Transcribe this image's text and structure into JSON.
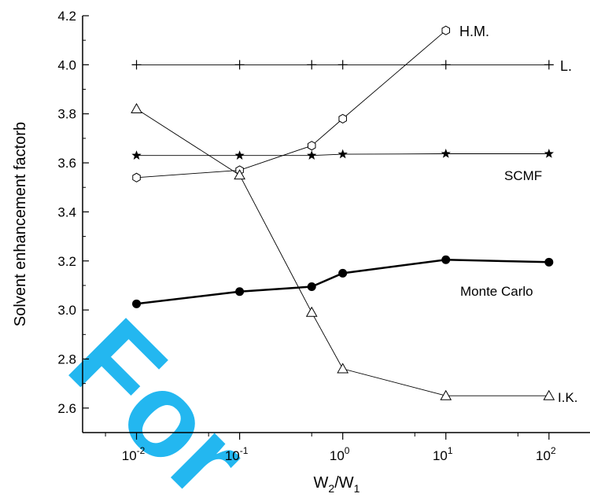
{
  "chart_data": {
    "type": "line",
    "xscale": "log",
    "xlim": [
      0.003,
      250
    ],
    "ylim": [
      2.5,
      4.2
    ],
    "xlabel": {
      "base": "W",
      "sub1": "2",
      "sep": "/W",
      "sub2": "1"
    },
    "ylabel": "Solvent enhancement factorb",
    "x_ticks": [
      {
        "value": 0.01,
        "base": "10",
        "exp": "-2"
      },
      {
        "value": 0.1,
        "base": "10",
        "exp": "-1"
      },
      {
        "value": 1,
        "base": "10",
        "exp": "0"
      },
      {
        "value": 10,
        "base": "10",
        "exp": "1"
      },
      {
        "value": 100,
        "base": "10",
        "exp": "2"
      }
    ],
    "y_ticks": [
      {
        "value": 2.6,
        "label": "2.6"
      },
      {
        "value": 2.8,
        "label": "2.8"
      },
      {
        "value": 3.0,
        "label": "3.0"
      },
      {
        "value": 3.2,
        "label": "3.2"
      },
      {
        "value": 3.4,
        "label": "3.4"
      },
      {
        "value": 3.6,
        "label": "3.6"
      },
      {
        "value": 3.8,
        "label": "3.8"
      },
      {
        "value": 4.0,
        "label": "4.0"
      },
      {
        "value": 4.2,
        "label": "4.2"
      }
    ],
    "series": [
      {
        "name": "L.",
        "marker": "plus",
        "thick": false,
        "x": [
          0.01,
          0.1,
          0.5,
          1,
          10,
          100
        ],
        "y": [
          4.0,
          4.0,
          4.0,
          4.0,
          4.0,
          4.0
        ]
      },
      {
        "name": "H.M.",
        "marker": "hexagon",
        "thick": false,
        "x": [
          0.01,
          0.1,
          0.5,
          1,
          10
        ],
        "y": [
          3.54,
          3.57,
          3.67,
          3.78,
          4.14
        ]
      },
      {
        "name": "SCMF",
        "marker": "star",
        "thick": false,
        "x": [
          0.01,
          0.1,
          0.5,
          1,
          10,
          100
        ],
        "y": [
          3.63,
          3.63,
          3.63,
          3.635,
          3.637,
          3.637
        ]
      },
      {
        "name": "Monte Carlo",
        "marker": "circle",
        "thick": true,
        "x": [
          0.01,
          0.1,
          0.5,
          1,
          10,
          100
        ],
        "y": [
          3.025,
          3.075,
          3.095,
          3.15,
          3.205,
          3.195
        ]
      },
      {
        "name": "I.K.",
        "marker": "triangle",
        "thick": false,
        "x": [
          0.01,
          0.1,
          0.5,
          1,
          10,
          100
        ],
        "y": [
          3.82,
          3.55,
          2.99,
          2.76,
          2.65,
          2.65
        ]
      }
    ],
    "watermark": "For"
  }
}
